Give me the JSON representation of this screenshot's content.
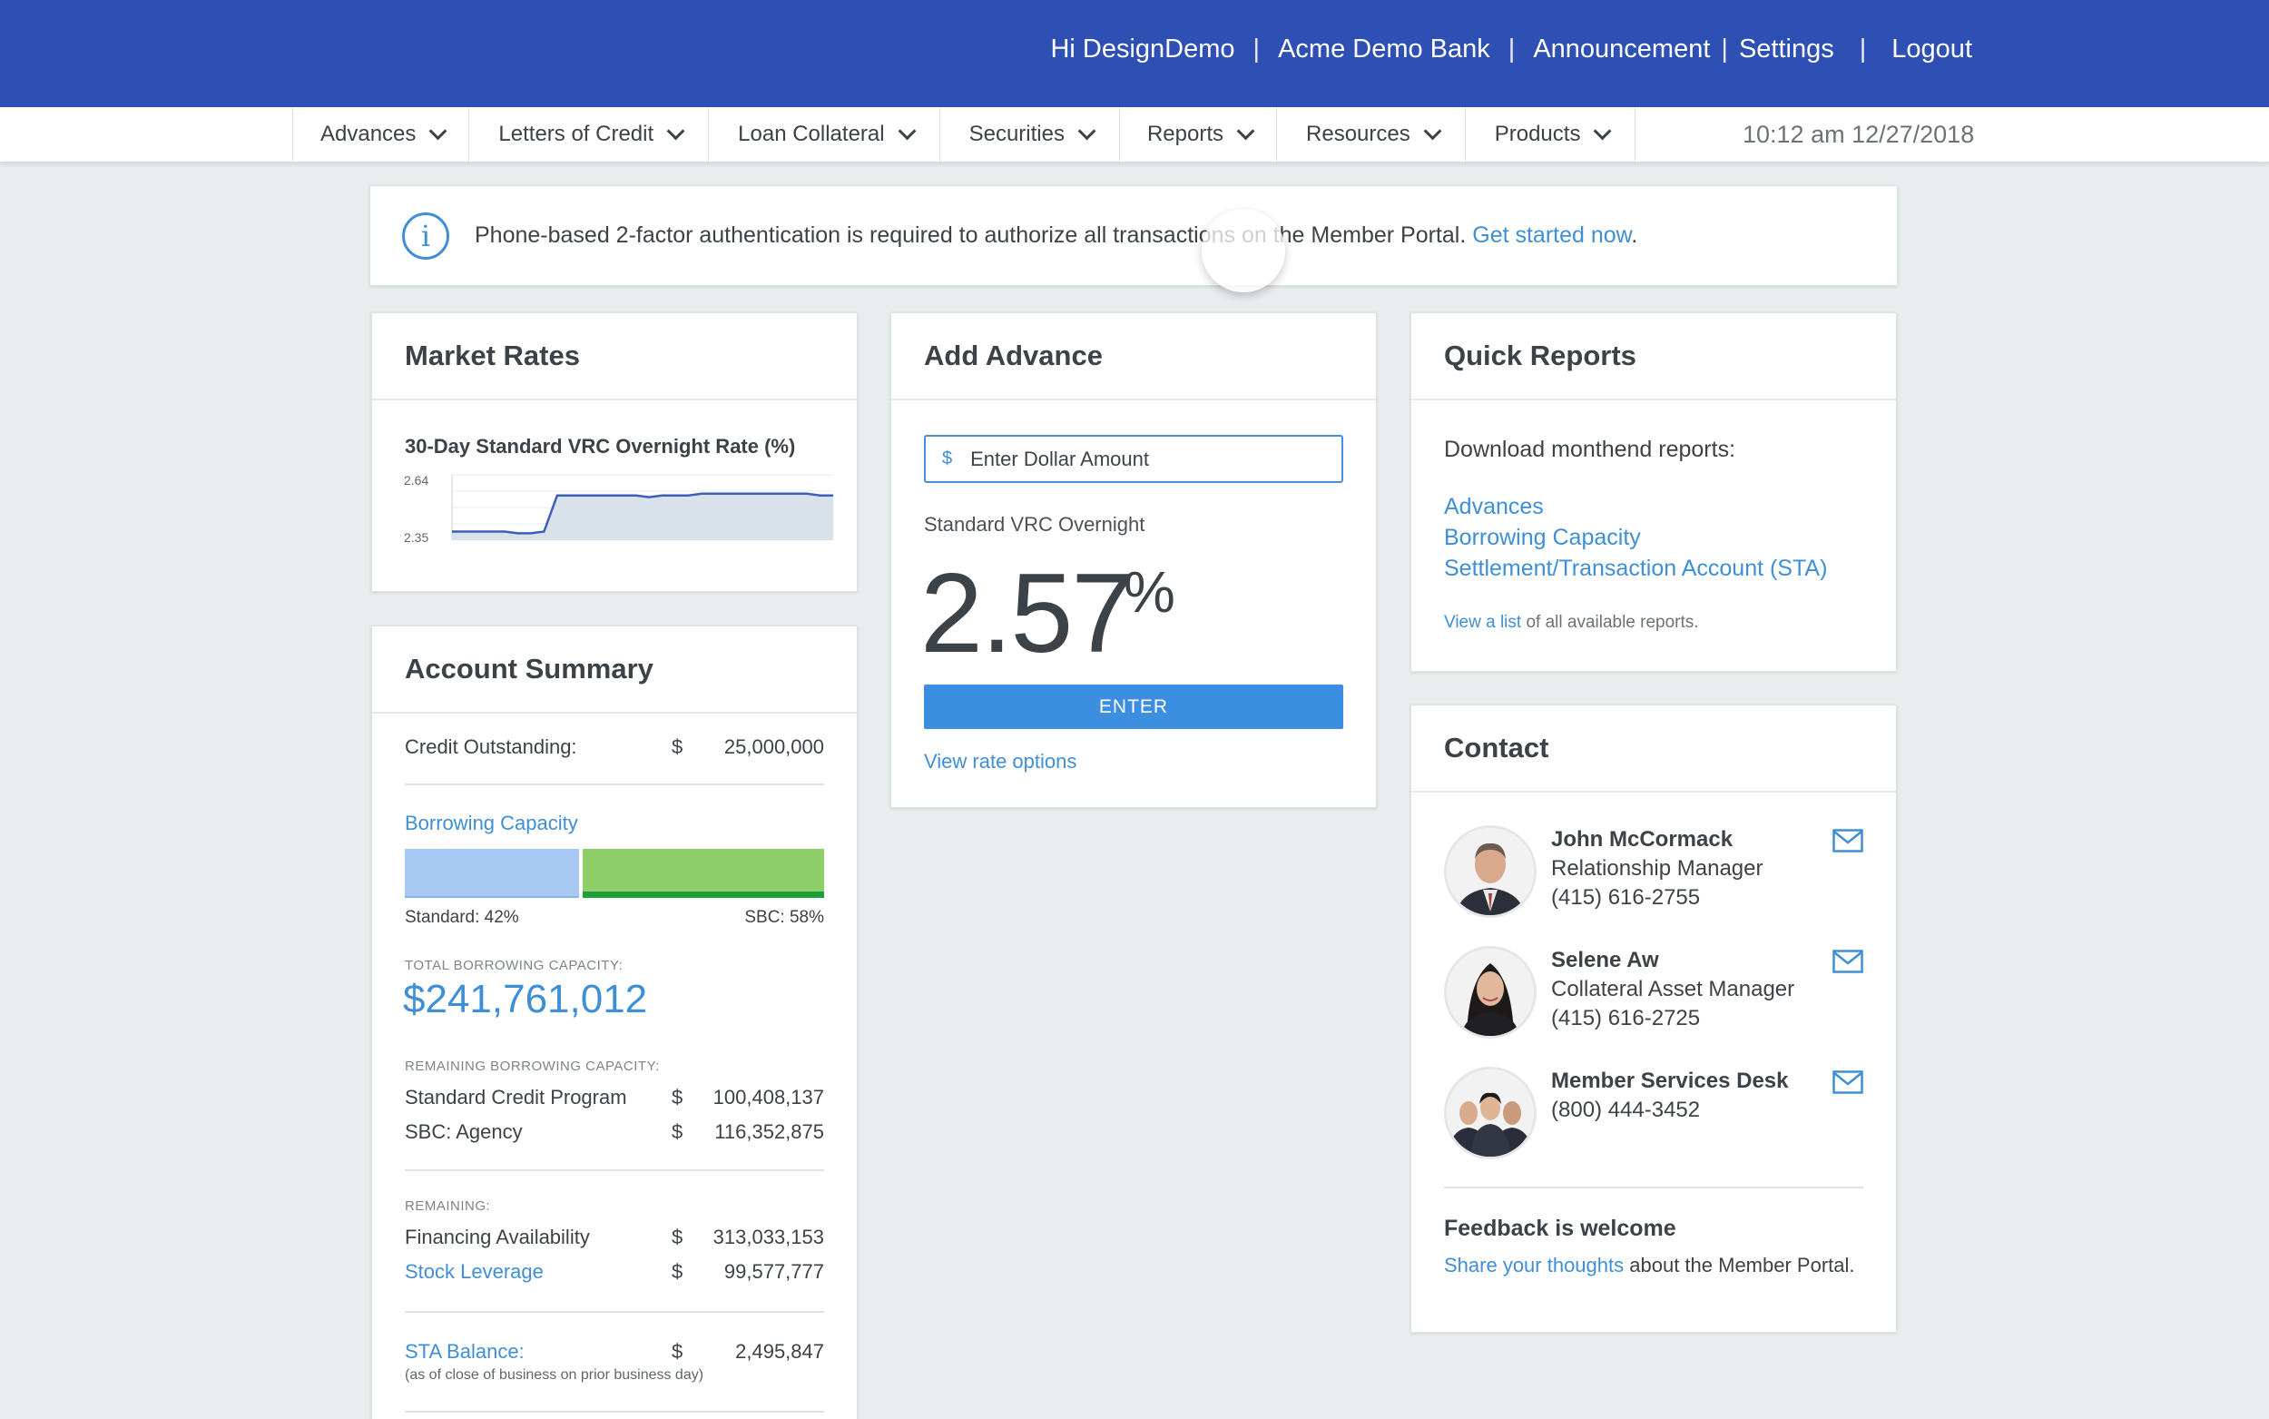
{
  "topnav": {
    "greeting": "Hi DesignDemo",
    "bank": "Acme Demo Bank",
    "announcement": "Announcement",
    "settings": "Settings",
    "logout": "Logout",
    "separator": "|"
  },
  "menu": [
    {
      "label": "Advances"
    },
    {
      "label": "Letters of Credit"
    },
    {
      "label": "Loan Collateral"
    },
    {
      "label": "Securities"
    },
    {
      "label": "Reports"
    },
    {
      "label": "Resources"
    },
    {
      "label": "Products"
    }
  ],
  "clock": "10:12 am 12/27/2018",
  "notice": {
    "text": "Phone-based 2-factor authentication is required to authorize all transactions on the Member Portal.",
    "link": "Get started now",
    "end": "."
  },
  "market": {
    "title": "Market Rates",
    "chart_data": {
      "type": "area",
      "title": "30-Day Standard VRC Overnight Rate (%)",
      "y_tick_labels": [
        "2.64",
        "2.35"
      ],
      "ylim": [
        2.3,
        2.68
      ],
      "x": [
        0,
        1,
        2,
        3,
        4,
        5,
        6,
        7,
        8,
        9,
        10,
        11,
        12,
        13,
        14,
        15,
        16,
        17,
        18,
        19,
        20,
        21,
        22,
        23,
        24,
        25,
        26,
        27,
        28,
        29
      ],
      "values": [
        2.35,
        2.35,
        2.35,
        2.35,
        2.35,
        2.34,
        2.34,
        2.35,
        2.56,
        2.56,
        2.56,
        2.56,
        2.56,
        2.56,
        2.56,
        2.55,
        2.56,
        2.56,
        2.56,
        2.57,
        2.57,
        2.57,
        2.57,
        2.57,
        2.57,
        2.57,
        2.57,
        2.57,
        2.56,
        2.56
      ],
      "colors": {
        "line": "#3e5fb8",
        "fill": "#d9e1ea"
      }
    }
  },
  "account": {
    "title": "Account Summary",
    "credit_label": "Credit Outstanding:",
    "credit_cur": "$",
    "credit_val": "25,000,000",
    "bc_link": "Borrowing Capacity",
    "bar": {
      "standard_fraction": 0.42,
      "sbc_fraction": 0.58
    },
    "standard_label": "Standard: 42%",
    "sbc_label": "SBC: 58%",
    "total_caption": "TOTAL BORROWING CAPACITY:",
    "total_value": "$241,761,012",
    "remaining_bc_caption": "REMAINING BORROWING CAPACITY:",
    "std_credit_label": "Standard Credit Program",
    "std_credit_cur": "$",
    "std_credit_val": "100,408,137",
    "sbc_agency_label": "SBC: Agency",
    "sbc_agency_cur": "$",
    "sbc_agency_val": "116,352,875",
    "remaining_caption": "REMAINING:",
    "fin_label": "Financing Availability",
    "fin_cur": "$",
    "fin_val": "313,033,153",
    "stock_label": "Stock Leverage",
    "stock_cur": "$",
    "stock_val": "99,577,777",
    "sta_label": "STA Balance:",
    "sta_cur": "$",
    "sta_val": "2,495,847",
    "sta_note": "(as of close of business on prior business day)"
  },
  "advance": {
    "title": "Add Advance",
    "currency": "$",
    "placeholder": "Enter Dollar Amount",
    "rate_label": "Standard VRC Overnight",
    "rate_value": "2.57",
    "rate_unit": "%",
    "enter": "ENTER",
    "rate_options": "View rate options"
  },
  "reports": {
    "title": "Quick Reports",
    "intro": "Download monthend reports:",
    "links": [
      "Advances",
      "Borrowing Capacity",
      "Settlement/Transaction Account (STA)"
    ],
    "view_list_link": "View a list",
    "view_list_rest": " of all available reports."
  },
  "contact": {
    "title": "Contact",
    "people": [
      {
        "name": "John McCormack",
        "role": "Relationship Manager",
        "phone": "(415) 616-2755"
      },
      {
        "name": "Selene Aw",
        "role": "Collateral Asset Manager",
        "phone": "(415) 616-2725"
      },
      {
        "name": "Member Services Desk",
        "role": "",
        "phone": "(800) 444-3452"
      }
    ],
    "feedback_title": "Feedback is welcome",
    "feedback_link": "Share your thoughts",
    "feedback_rest": " about the Member Portal."
  },
  "icons": {
    "info": "info-icon",
    "chevron": "chevron-down-icon",
    "mail": "mail-icon"
  },
  "colors": {
    "brand": "#2e50b4",
    "accent": "#3f8fd6",
    "button": "#3c8fe0",
    "bar_standard": "#a6c8f2",
    "bar_sbc": "#8ecf6a"
  }
}
